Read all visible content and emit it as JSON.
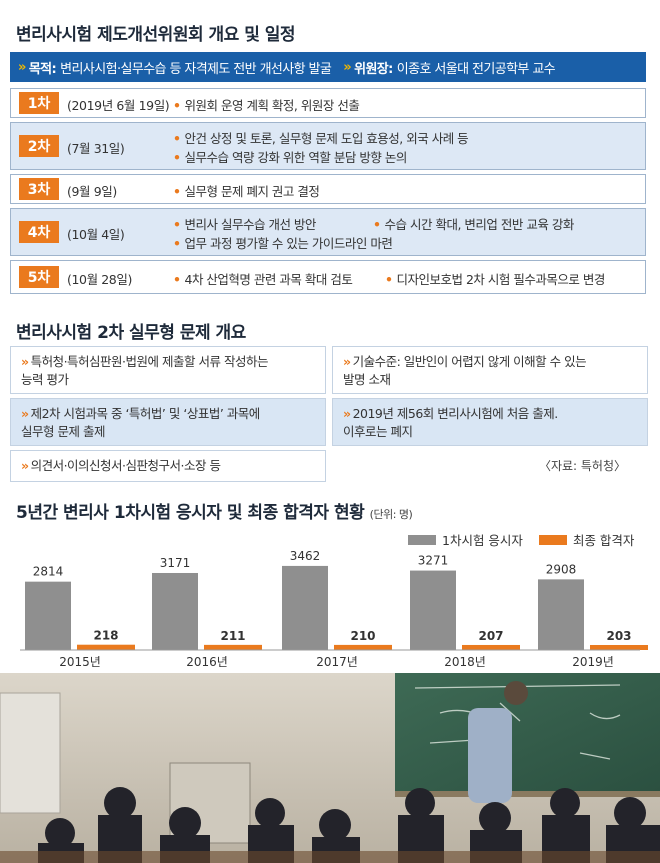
{
  "title1": "변리사시험 제도개선위원회 개요 및 일정",
  "purpose": {
    "label1": "목적:",
    "text1": "변리사시험·실무수습 등 자격제도 전반 개선사항 발굴",
    "label2": "위원장:",
    "text2": "이종호 서울대 전기공학부 교수"
  },
  "schedule": [
    {
      "badge": "1차",
      "date": "(2019년 6월 19일)",
      "items": [
        "위원회 운영 계획 확정, 위원장 선출"
      ]
    },
    {
      "badge": "2차",
      "date": "(7월 31일)",
      "items": [
        "안건 상정 및 토론, 실무형 문제 도입 효용성, 외국 사례 등",
        "실무수습 역량 강화 위한 역할 분담 방향 논의"
      ]
    },
    {
      "badge": "3차",
      "date": "(9월 9일)",
      "items": [
        "실무형 문제 폐지 권고 결정"
      ]
    },
    {
      "badge": "4차",
      "date": "(10월 4일)",
      "items": [
        "변리사 실무수습 개선 방안",
        "수습 시간 확대, 변리업 전반 교육 강화",
        "업무 과정 평가할 수 있는 가이드라인 마련"
      ]
    },
    {
      "badge": "5차",
      "date": "(10월 28일)",
      "items": [
        "4차 산업혁명 관련 과목 확대 검토",
        "디자인보호법 2차 시험 필수과목으로 변경"
      ]
    }
  ],
  "title2": "변리사시험 2차 실무형 문제 개요",
  "overview": {
    "b1": [
      "특허청·특허심판원·법원에 제출할 서류 작성하는",
      "능력 평가"
    ],
    "b2": [
      "기술수준: 일반인이 어렵지 않게 이해할 수 있는",
      "발명 소재"
    ],
    "b3": [
      "제2차 시험과목 중 ‘특허법’ 및 ‘상표법’ 과목에",
      "실무형 문제 출제"
    ],
    "b4": [
      "2019년 제56회 변리사시험에 처음 출제.",
      "이후로는 폐지"
    ],
    "b5": [
      "의견서·이의신청서·심판청구서·소장 등"
    ]
  },
  "source": "〈자료: 특허청〉",
  "title3": "5년간 변리사 1차시험 응시자 및 최종 합격자 현황",
  "unit": "(단위: 명)",
  "colors": {
    "applicants": "#8f8f8f",
    "passers": "#ea7a1e",
    "accent": "#1a5fa8"
  },
  "chart_data": {
    "type": "bar",
    "categories": [
      "2015년",
      "2016년",
      "2017년",
      "2018년",
      "2019년"
    ],
    "series": [
      {
        "name": "1차시험 응시자",
        "values": [
          2814,
          3171,
          3462,
          3271,
          2908
        ]
      },
      {
        "name": "최종 합격자",
        "values": [
          218,
          211,
          210,
          207,
          203
        ]
      }
    ],
    "ylim": [
      0,
      3500
    ]
  }
}
